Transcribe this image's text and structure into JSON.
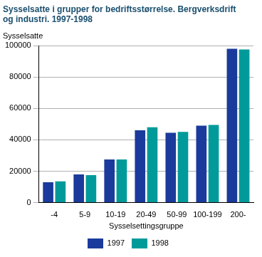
{
  "chart_data": {
    "type": "bar",
    "title": [
      "Sysselsatte i grupper for bedriftsstørrelse. Bergverksdrift",
      "og industri. 1997-1998"
    ],
    "y_label": "Sysselsatte",
    "x_label": "Sysselsettingsgruppe",
    "categories": [
      "-4",
      "5-9",
      "10-19",
      "20-49",
      "50-99",
      "100-199",
      "200-"
    ],
    "series": [
      {
        "name": "1997",
        "color": "#1a3a9c",
        "values": [
          13000,
          18000,
          27500,
          46000,
          44500,
          49000,
          98000
        ]
      },
      {
        "name": "1998",
        "color": "#009a9a",
        "values": [
          13500,
          17500,
          27500,
          48000,
          45000,
          49500,
          97500
        ]
      }
    ],
    "ylim": [
      0,
      100000
    ],
    "yticks": [
      0,
      20000,
      40000,
      60000,
      80000,
      100000
    ],
    "grid": true,
    "legend": "bottom"
  }
}
